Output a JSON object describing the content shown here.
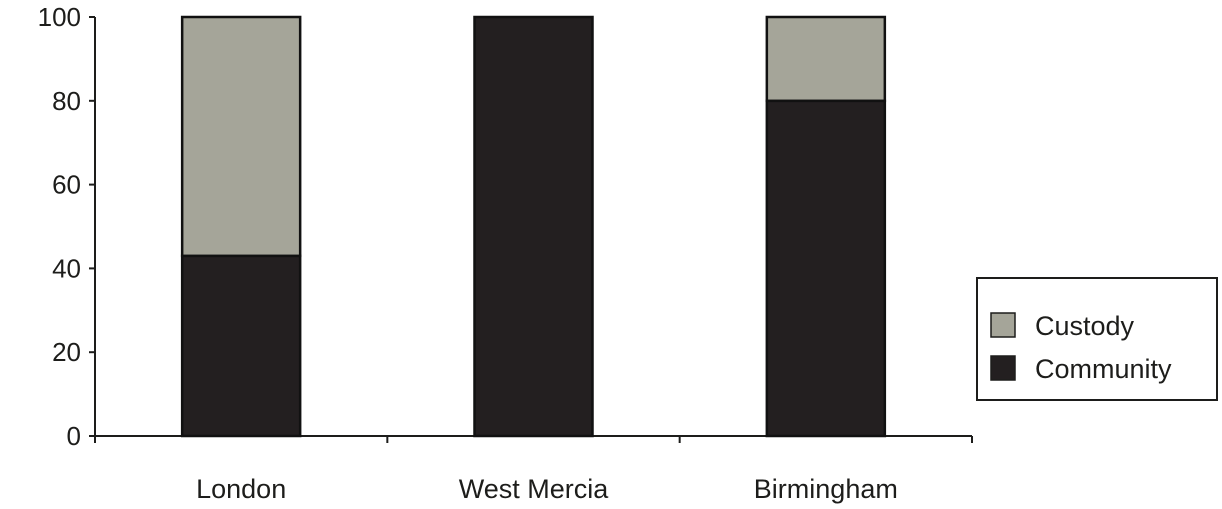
{
  "chart_data": {
    "type": "bar",
    "stacked": true,
    "title": "",
    "xlabel": "",
    "ylabel": "",
    "categories": [
      "London",
      "West Mercia",
      "Birmingham"
    ],
    "series": [
      {
        "name": "Community",
        "values": [
          43,
          100,
          80
        ],
        "color": "#231f20"
      },
      {
        "name": "Custody",
        "values": [
          57,
          0,
          20
        ],
        "color": "#a5a599"
      }
    ],
    "ylim": [
      0,
      100
    ],
    "yticks": [
      0,
      20,
      40,
      60,
      80,
      100
    ],
    "grid": false,
    "legend": {
      "position": "right",
      "entries": [
        {
          "label": "Custody",
          "color": "#a5a599"
        },
        {
          "label": "Community",
          "color": "#231f20"
        }
      ]
    }
  }
}
